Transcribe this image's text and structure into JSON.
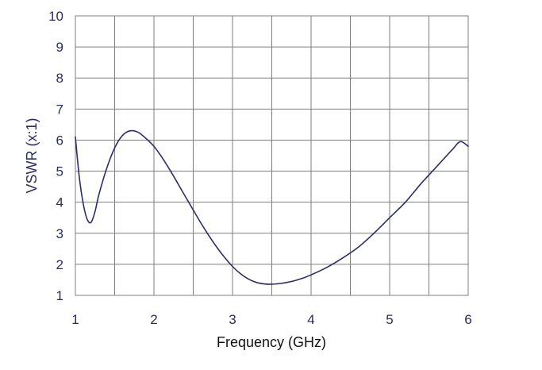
{
  "chart_data": {
    "type": "line",
    "title": "",
    "xlabel": "Frequency (GHz)",
    "ylabel": "VSWR (x:1)",
    "xlim": [
      1,
      6
    ],
    "ylim": [
      1,
      10
    ],
    "x_ticks": [
      "1",
      "2",
      "3",
      "4",
      "5",
      "6"
    ],
    "y_ticks": [
      "1",
      "2",
      "3",
      "4",
      "5",
      "6",
      "7",
      "8",
      "9",
      "10"
    ],
    "x_minor_divisions": 2,
    "grid": true,
    "legend": "none",
    "colors": {
      "line": "#2d2d6b",
      "grid": "#7f7f7f",
      "frame": "#7f7f7f",
      "tick_text": "#2b2b63",
      "x_title": "#111111",
      "y_title": "#2b2b63"
    },
    "series": [
      {
        "x": [
          1.0,
          1.05,
          1.1,
          1.15,
          1.2,
          1.25,
          1.3,
          1.4,
          1.5,
          1.6,
          1.7,
          1.8,
          1.9,
          2.0,
          2.1,
          2.2,
          2.3,
          2.4,
          2.5,
          2.6,
          2.7,
          2.8,
          2.9,
          3.0,
          3.1,
          3.2,
          3.3,
          3.4,
          3.5,
          3.6,
          3.7,
          3.8,
          3.9,
          4.0,
          4.2,
          4.4,
          4.6,
          4.8,
          5.0,
          5.2,
          5.4,
          5.6,
          5.8,
          5.9,
          6.0
        ],
        "values": [
          6.1,
          4.8,
          3.95,
          3.45,
          3.35,
          3.7,
          4.25,
          5.1,
          5.75,
          6.15,
          6.3,
          6.25,
          6.05,
          5.8,
          5.45,
          5.05,
          4.62,
          4.18,
          3.75,
          3.32,
          2.92,
          2.55,
          2.22,
          1.93,
          1.7,
          1.53,
          1.42,
          1.37,
          1.36,
          1.38,
          1.42,
          1.48,
          1.56,
          1.66,
          1.9,
          2.2,
          2.55,
          3.0,
          3.5,
          4.0,
          4.6,
          5.15,
          5.7,
          5.95,
          5.8
        ]
      }
    ]
  }
}
